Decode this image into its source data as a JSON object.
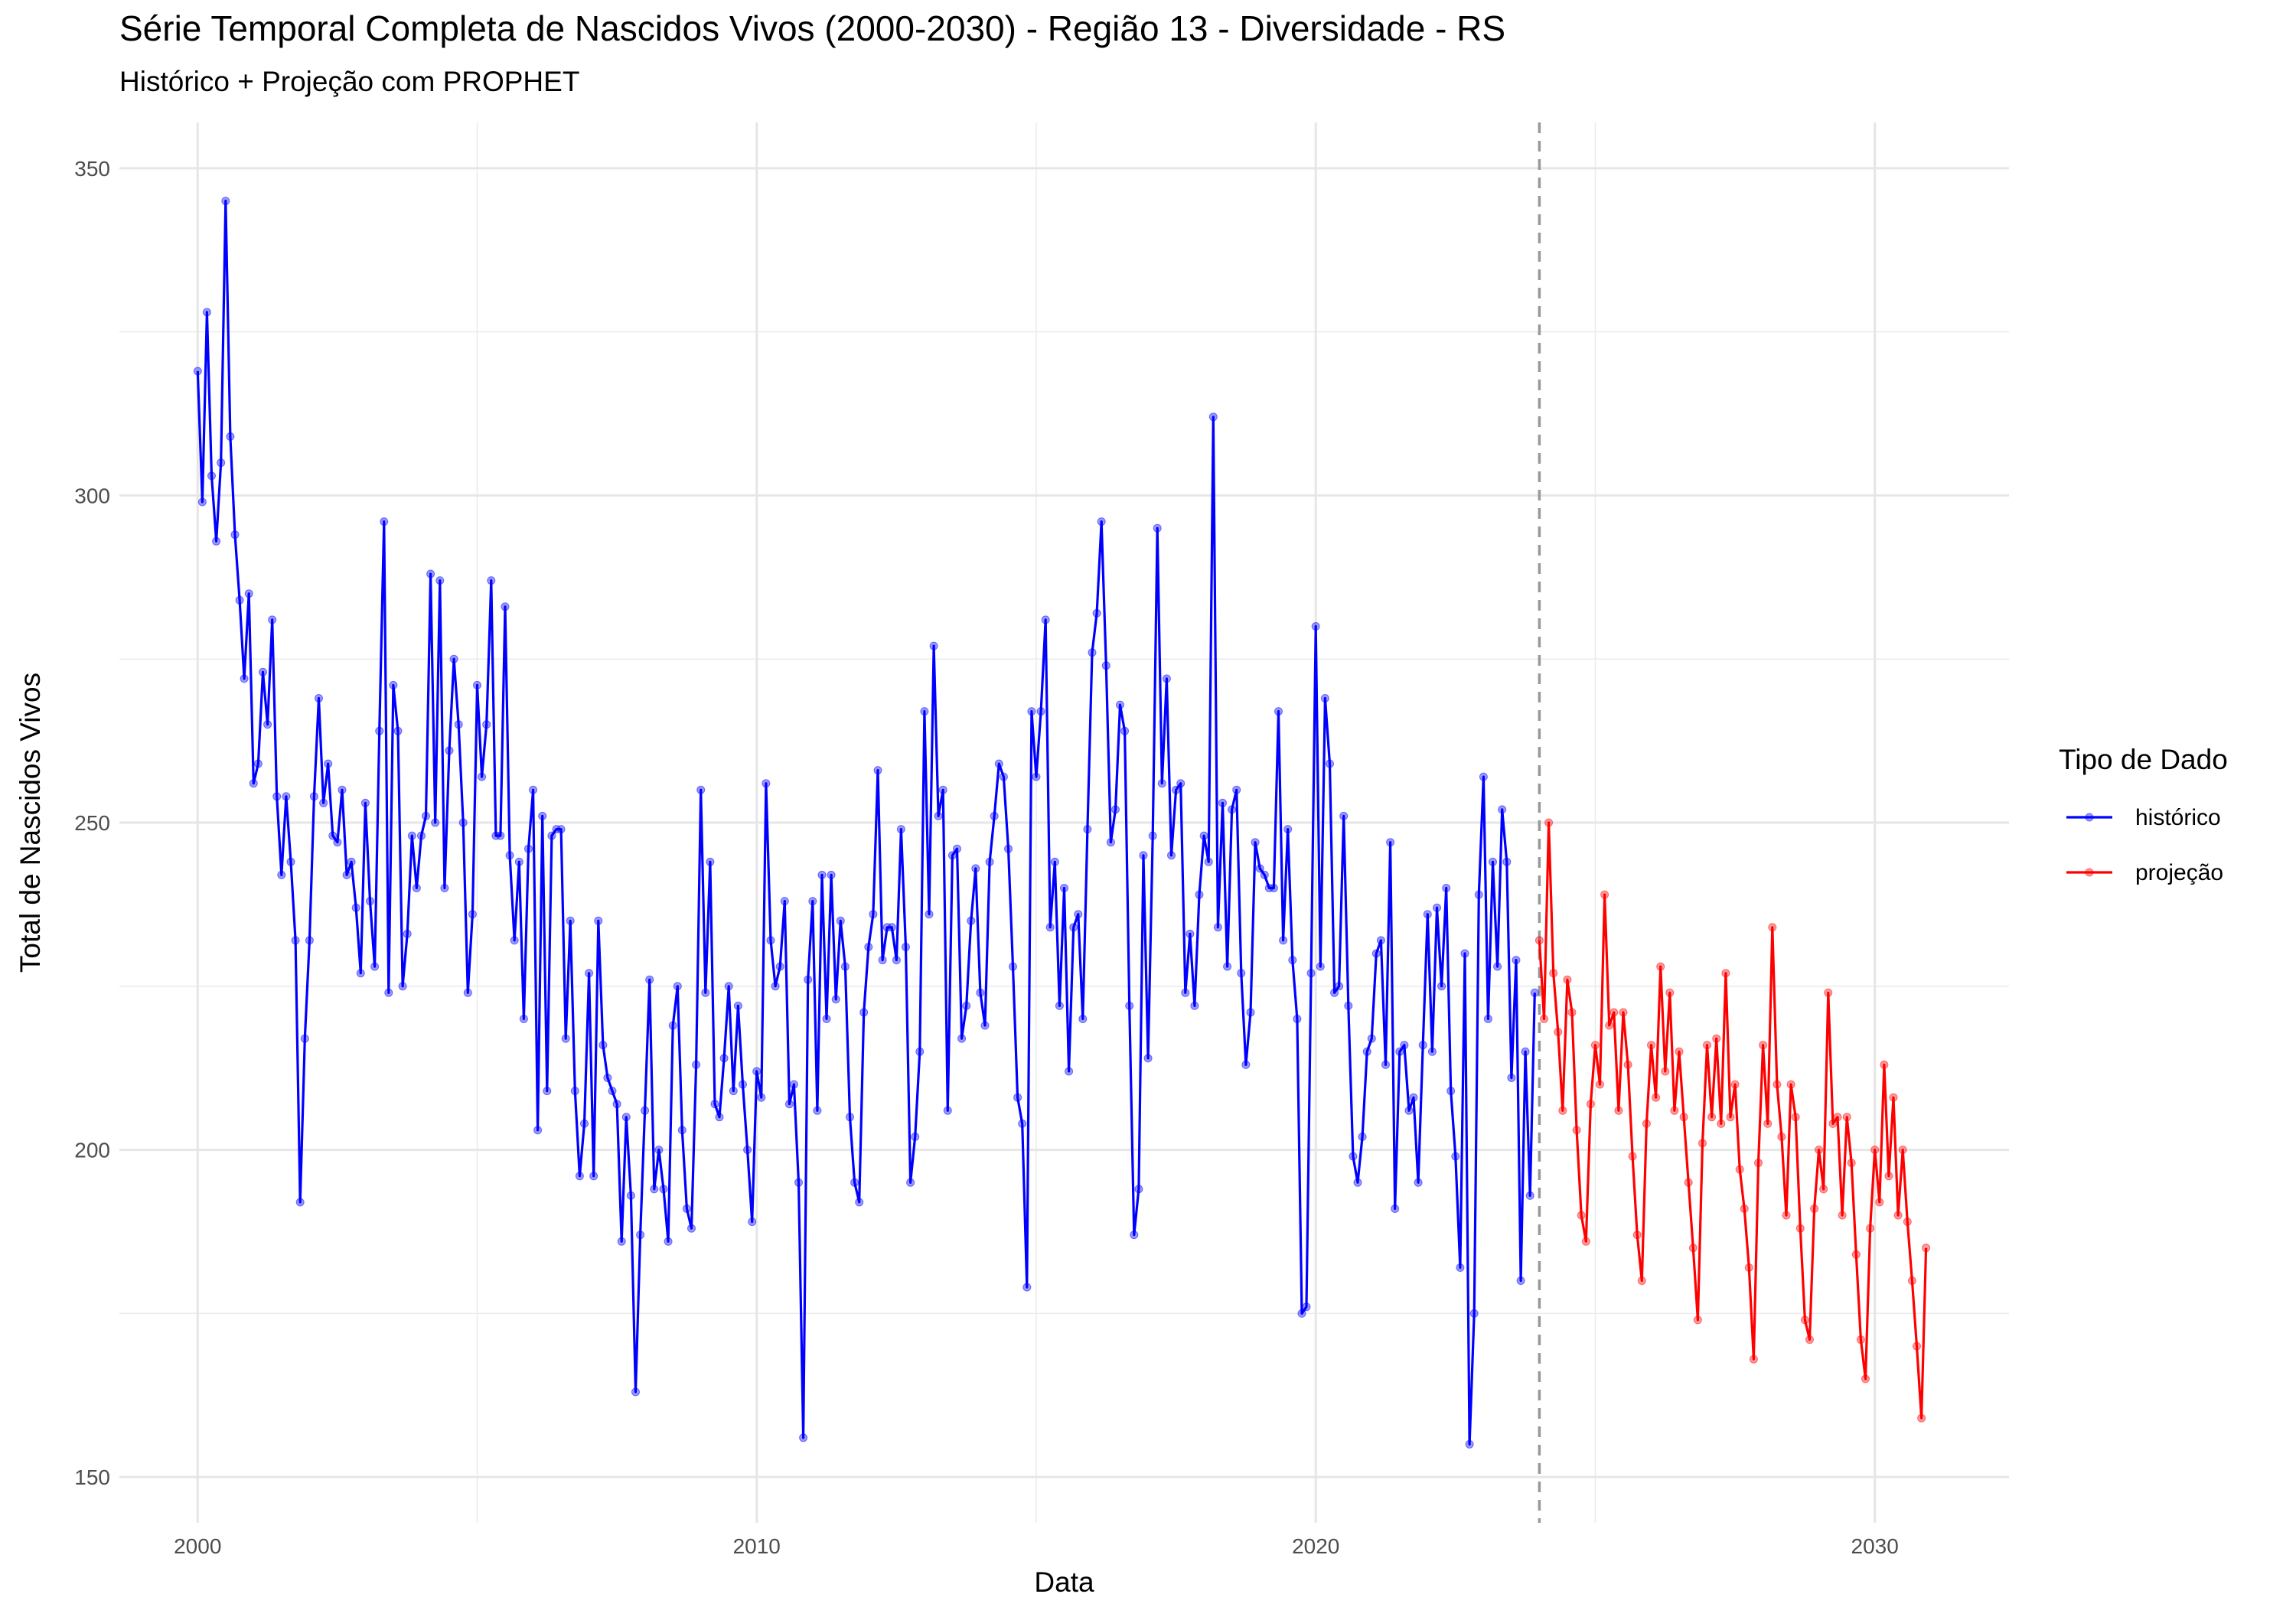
{
  "chart_data": {
    "type": "line",
    "title": "Série Temporal Completa de Nascidos Vivos (2000-2030) -  Região 13 - Diversidade - RS",
    "subtitle": "Histórico + Projeção com PROPHET",
    "xlabel": "Data",
    "ylabel": "Total de Nascidos Vivos",
    "xlim": [
      1998.6,
      2032.4
    ],
    "ylim": [
      143,
      357
    ],
    "x_ticks": [
      2000,
      2010,
      2020,
      2030
    ],
    "x_tick_labels": [
      "2000",
      "2010",
      "2020",
      "2030"
    ],
    "y_ticks": [
      150,
      200,
      250,
      300,
      350
    ],
    "y_tick_labels": [
      "150",
      "200",
      "250",
      "300",
      "350"
    ],
    "grid": true,
    "legend": {
      "title": "Tipo de Dado",
      "placement": "right"
    },
    "vline": {
      "x": 2024,
      "style": "dashed",
      "color": "#999999"
    },
    "series": [
      {
        "name": "histórico",
        "color": "#0000ff",
        "start": 2000,
        "step": 0.0833333,
        "values": [
          319,
          299,
          328,
          303,
          293,
          305,
          345,
          309,
          294,
          284,
          272,
          285,
          256,
          259,
          273,
          265,
          281,
          254,
          242,
          254,
          244,
          232,
          192,
          217,
          232,
          254,
          269,
          253,
          259,
          248,
          247,
          255,
          242,
          244,
          237,
          227,
          253,
          238,
          228,
          264,
          296,
          224,
          271,
          264,
          225,
          233,
          248,
          240,
          248,
          251,
          288,
          250,
          287,
          240,
          261,
          275,
          265,
          250,
          224,
          236,
          271,
          257,
          265,
          287,
          248,
          248,
          283,
          245,
          232,
          244,
          220,
          246,
          255,
          203,
          251,
          209,
          248,
          249,
          249,
          217,
          235,
          209,
          196,
          204,
          227,
          196,
          235,
          216,
          211,
          209,
          207,
          186,
          205,
          193,
          163,
          187,
          206,
          226,
          194,
          200,
          194,
          186,
          219,
          225,
          203,
          191,
          188,
          213,
          255,
          224,
          244,
          207,
          205,
          214,
          225,
          209,
          222,
          210,
          200,
          189,
          212,
          208,
          256,
          232,
          225,
          228,
          238,
          207,
          210,
          195,
          156,
          226,
          238,
          206,
          242,
          220,
          242,
          223,
          235,
          228,
          205,
          195,
          192,
          221,
          231,
          236,
          258,
          229,
          234,
          234,
          229,
          249,
          231,
          195,
          202,
          215,
          267,
          236,
          277,
          251,
          255,
          206,
          245,
          246,
          217,
          222,
          235,
          243,
          224,
          219,
          244,
          251,
          259,
          257,
          246,
          228,
          208,
          204,
          179,
          267,
          257,
          267,
          281,
          234,
          244,
          222,
          240,
          212,
          234,
          236,
          220,
          249,
          276,
          282,
          296,
          274,
          247,
          252,
          268,
          264,
          222,
          187,
          194,
          245,
          214,
          248,
          295,
          256,
          272,
          245,
          255,
          256,
          224,
          233,
          222,
          239,
          248,
          244,
          312,
          234,
          253,
          228,
          252,
          255,
          227,
          213,
          221,
          247,
          243,
          242,
          240,
          240,
          267,
          232,
          249,
          229,
          220,
          175,
          176,
          227,
          280,
          228,
          269,
          259,
          224,
          225,
          251,
          222,
          199,
          195,
          202,
          215,
          217,
          230,
          232,
          213,
          247,
          191,
          215,
          216,
          206,
          208,
          195,
          216,
          236,
          215,
          237,
          225,
          240,
          209,
          199,
          182,
          230,
          155,
          175,
          239,
          257,
          220,
          244,
          228,
          252,
          244,
          211,
          229,
          180,
          215,
          193,
          224
        ]
      },
      {
        "name": "projeção",
        "color": "#ff0000",
        "start": 2024.0,
        "step": 0.0833333,
        "values": [
          232,
          220,
          250,
          227,
          218,
          206,
          226,
          221,
          203,
          190,
          186,
          207,
          216,
          210,
          239,
          219,
          221,
          206,
          221,
          213,
          199,
          187,
          180,
          204,
          216,
          208,
          228,
          212,
          224,
          206,
          215,
          205,
          195,
          185,
          174,
          201,
          216,
          205,
          217,
          204,
          227,
          205,
          210,
          197,
          191,
          182,
          168,
          198,
          216,
          204,
          234,
          210,
          202,
          190,
          210,
          205,
          188,
          174,
          171,
          191,
          200,
          194,
          224,
          204,
          205,
          190,
          205,
          198,
          184,
          171,
          165,
          188,
          200,
          192,
          213,
          196,
          208,
          190,
          200,
          189,
          180,
          170,
          159,
          185
        ]
      }
    ]
  }
}
